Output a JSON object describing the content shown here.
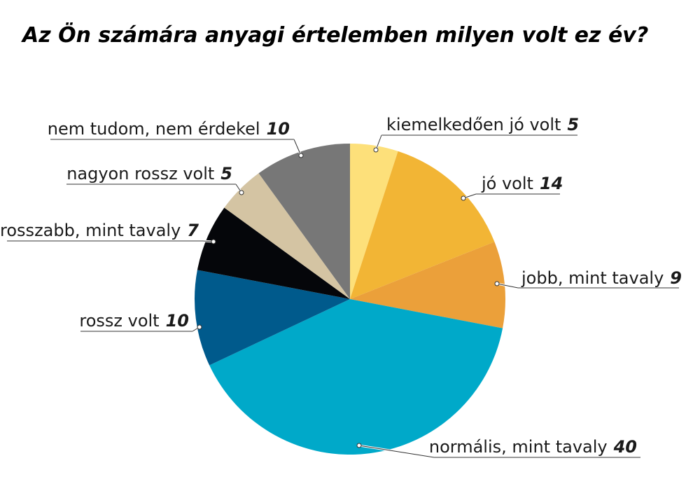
{
  "chart_data": {
    "type": "pie",
    "title": "Az Ön számára anyagi értelemben milyen volt ez év?",
    "categories": [
      "kiemelkedően jó volt",
      "jó volt",
      "jobb, mint tavaly",
      "normális, mint tavaly",
      "rossz volt",
      "rosszabb, mint tavaly",
      "nagyon rossz volt",
      "nem tudom, nem érdekel"
    ],
    "values": [
      5,
      14,
      9,
      40,
      10,
      7,
      5,
      10
    ],
    "colors": [
      "#fde07a",
      "#f2b535",
      "#eba03a",
      "#00a9c9",
      "#005a8c",
      "#05060a",
      "#d4c4a3",
      "#777777"
    ]
  }
}
